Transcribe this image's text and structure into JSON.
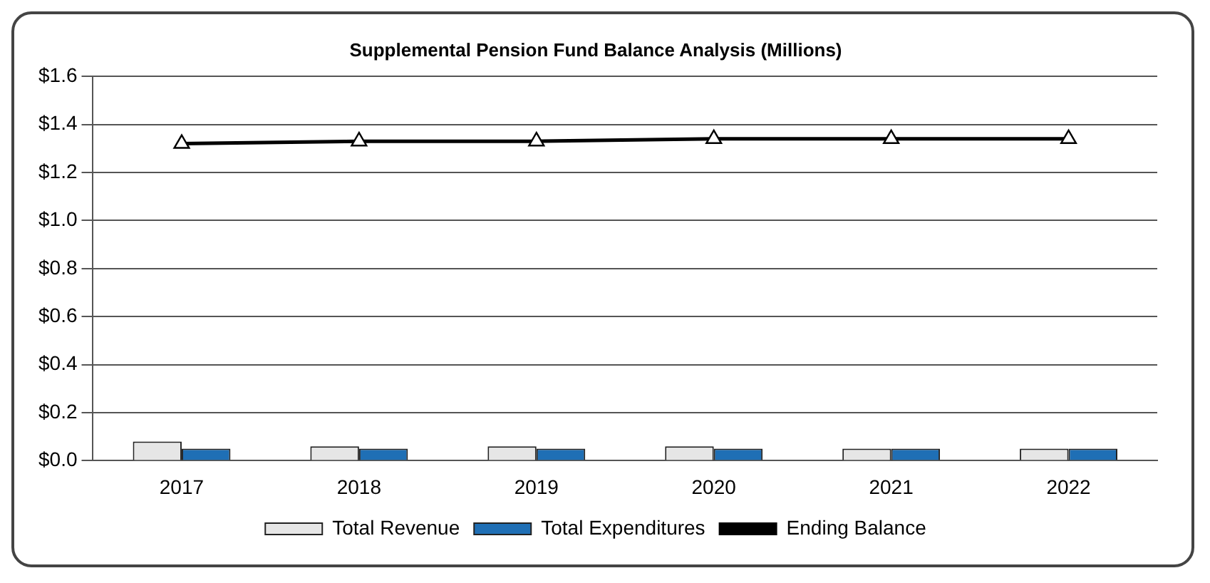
{
  "chart_data": {
    "type": "bar",
    "title": "Supplemental Pension Fund Balance Analysis (Millions)",
    "categories": [
      "2017",
      "2018",
      "2019",
      "2020",
      "2021",
      "2022"
    ],
    "series": [
      {
        "name": "Total Revenue",
        "color": "#e6e6e6",
        "values": [
          0.08,
          0.06,
          0.06,
          0.06,
          0.05,
          0.05
        ]
      },
      {
        "name": "Total Expenditures",
        "color": "#1f6fb5",
        "values": [
          0.05,
          0.05,
          0.05,
          0.05,
          0.05,
          0.05
        ]
      },
      {
        "name": "Ending Balance",
        "type": "line",
        "color": "#000000",
        "marker": "triangle",
        "values": [
          1.32,
          1.33,
          1.33,
          1.34,
          1.34,
          1.34
        ]
      }
    ],
    "ylim": [
      0,
      1.6
    ],
    "yticks": [
      {
        "value": 0,
        "label": "$0.0"
      },
      {
        "value": 0.2,
        "label": "$0.2"
      },
      {
        "value": 0.4,
        "label": "$0.4"
      },
      {
        "value": 0.6,
        "label": "$0.6"
      },
      {
        "value": 0.8,
        "label": "$0.8"
      },
      {
        "value": 1.0,
        "label": "$1.0"
      },
      {
        "value": 1.2,
        "label": "$1.2"
      },
      {
        "value": 1.4,
        "label": "$1.4"
      },
      {
        "value": 1.6,
        "label": "$1.6"
      }
    ],
    "grid": "y",
    "legend": "bottom"
  }
}
